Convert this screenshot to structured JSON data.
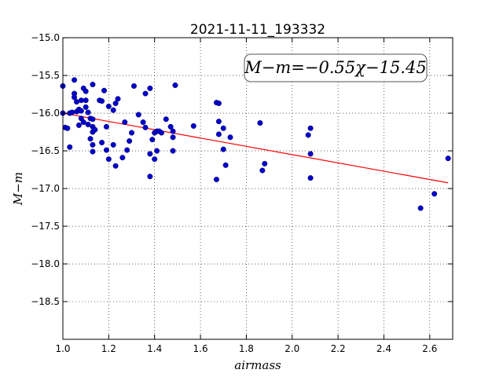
{
  "chart_data": {
    "type": "scatter",
    "title": "2021-11-11_193332",
    "xlabel": "airmass",
    "ylabel": "M−m",
    "xlim": [
      1.0,
      2.7
    ],
    "ylim": [
      -14.999,
      -19.0
    ],
    "x_ticks": [
      1.0,
      1.2,
      1.4,
      1.6,
      1.8,
      2.0,
      2.2,
      2.4,
      2.6
    ],
    "x_tick_labels": [
      "1.0",
      "1.2",
      "1.4",
      "1.6",
      "1.8",
      "2.0",
      "2.2",
      "2.4",
      "2.6"
    ],
    "y_ticks": [
      -15.0,
      -15.5,
      -16.0,
      -16.5,
      -17.0,
      -17.5,
      -18.0,
      -18.5
    ],
    "y_tick_labels": [
      "−15.0",
      "−15.5",
      "−16.0",
      "−16.5",
      "−17.0",
      "−17.5",
      "−18.0",
      "−18.5"
    ],
    "grid": true,
    "annotation": "M−m=−0.55χ−15.45",
    "fit": {
      "slope": -0.55,
      "intercept": -15.45,
      "x_range": [
        1.0,
        2.68
      ],
      "color": "#ff0000"
    },
    "point_color": "#0000cc",
    "points": [
      [
        1.0,
        -16.0
      ],
      [
        1.0,
        -15.64
      ],
      [
        1.01,
        -16.19
      ],
      [
        1.02,
        -16.2
      ],
      [
        1.03,
        -16.45
      ],
      [
        1.03,
        -16.0
      ],
      [
        1.04,
        -15.99
      ],
      [
        1.05,
        -15.56
      ],
      [
        1.05,
        -15.74
      ],
      [
        1.05,
        -15.79
      ],
      [
        1.06,
        -15.85
      ],
      [
        1.06,
        -15.98
      ],
      [
        1.07,
        -15.95
      ],
      [
        1.07,
        -16.16
      ],
      [
        1.08,
        -15.83
      ],
      [
        1.08,
        -15.97
      ],
      [
        1.08,
        -16.07
      ],
      [
        1.09,
        -15.67
      ],
      [
        1.09,
        -16.12
      ],
      [
        1.1,
        -15.71
      ],
      [
        1.1,
        -15.83
      ],
      [
        1.1,
        -15.92
      ],
      [
        1.11,
        -15.99
      ],
      [
        1.11,
        -16.15
      ],
      [
        1.12,
        -16.07
      ],
      [
        1.12,
        -16.34
      ],
      [
        1.13,
        -15.62
      ],
      [
        1.13,
        -16.08
      ],
      [
        1.13,
        -16.18
      ],
      [
        1.13,
        -16.25
      ],
      [
        1.13,
        -16.42
      ],
      [
        1.13,
        -16.51
      ],
      [
        1.14,
        -16.22
      ],
      [
        1.16,
        -15.83
      ],
      [
        1.17,
        -15.84
      ],
      [
        1.17,
        -16.39
      ],
      [
        1.18,
        -15.7
      ],
      [
        1.19,
        -16.49
      ],
      [
        1.19,
        -16.18
      ],
      [
        1.2,
        -15.91
      ],
      [
        1.2,
        -16.61
      ],
      [
        1.22,
        -15.96
      ],
      [
        1.22,
        -16.42
      ],
      [
        1.23,
        -16.7
      ],
      [
        1.23,
        -15.87
      ],
      [
        1.24,
        -15.81
      ],
      [
        1.26,
        -16.59
      ],
      [
        1.27,
        -16.12
      ],
      [
        1.28,
        -16.49
      ],
      [
        1.29,
        -16.37
      ],
      [
        1.3,
        -16.26
      ],
      [
        1.31,
        -15.64
      ],
      [
        1.33,
        -16.02
      ],
      [
        1.35,
        -16.12
      ],
      [
        1.36,
        -16.19
      ],
      [
        1.36,
        -15.74
      ],
      [
        1.38,
        -15.67
      ],
      [
        1.38,
        -16.54
      ],
      [
        1.38,
        -16.84
      ],
      [
        1.39,
        -16.35
      ],
      [
        1.4,
        -16.26
      ],
      [
        1.4,
        -16.61
      ],
      [
        1.41,
        -16.24
      ],
      [
        1.41,
        -16.5
      ],
      [
        1.42,
        -16.24
      ],
      [
        1.43,
        -16.26
      ],
      [
        1.45,
        -16.08
      ],
      [
        1.47,
        -16.18
      ],
      [
        1.48,
        -16.24
      ],
      [
        1.48,
        -16.32
      ],
      [
        1.48,
        -16.5
      ],
      [
        1.49,
        -15.63
      ],
      [
        1.57,
        -16.17
      ],
      [
        1.67,
        -15.86
      ],
      [
        1.68,
        -15.87
      ],
      [
        1.68,
        -16.11
      ],
      [
        1.68,
        -16.28
      ],
      [
        1.67,
        -16.88
      ],
      [
        1.7,
        -16.2
      ],
      [
        1.7,
        -16.48
      ],
      [
        1.71,
        -16.69
      ],
      [
        1.73,
        -16.32
      ],
      [
        1.86,
        -16.13
      ],
      [
        1.87,
        -16.76
      ],
      [
        1.88,
        -16.67
      ],
      [
        2.07,
        -16.29
      ],
      [
        2.08,
        -16.2
      ],
      [
        2.08,
        -16.54
      ],
      [
        2.08,
        -16.86
      ],
      [
        2.56,
        -17.26
      ],
      [
        2.62,
        -17.07
      ],
      [
        2.68,
        -16.6
      ]
    ]
  }
}
